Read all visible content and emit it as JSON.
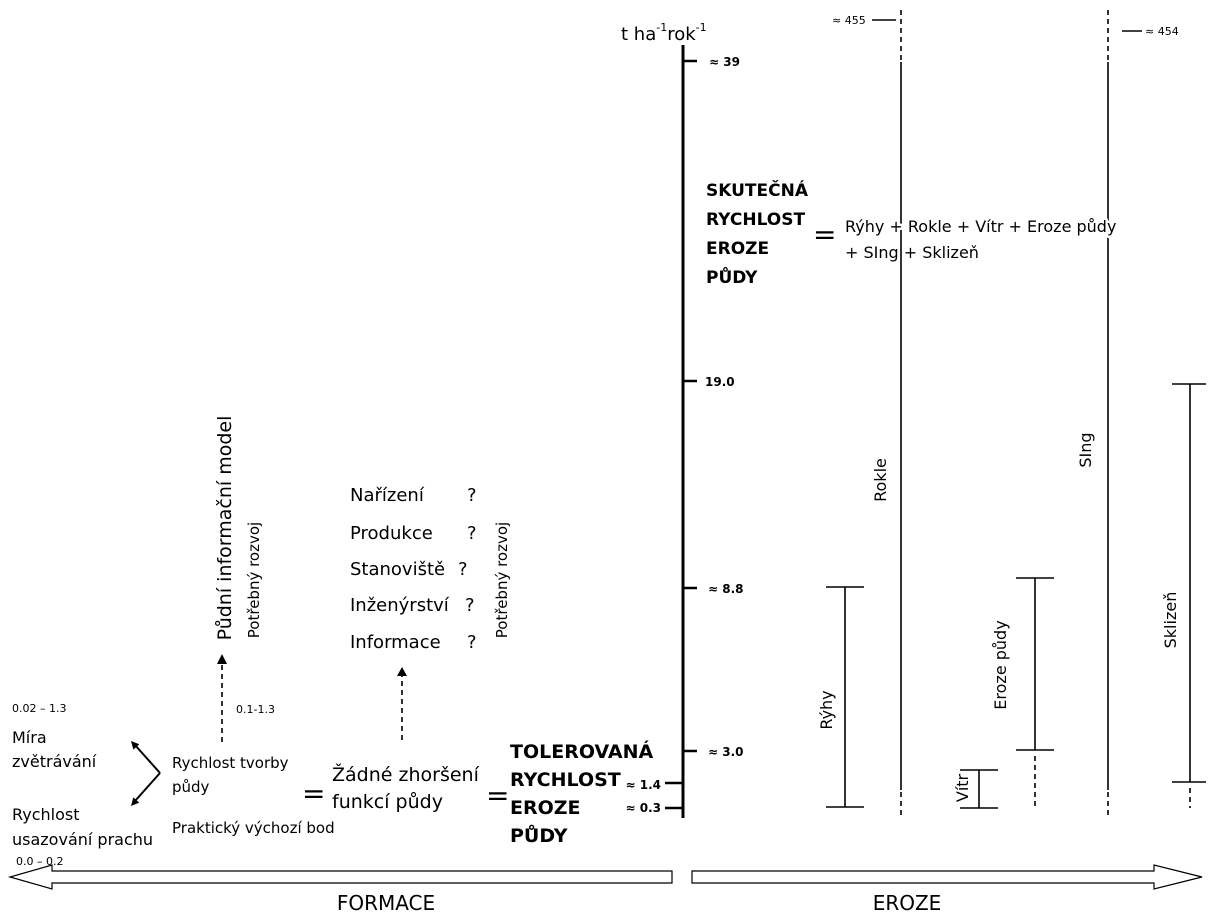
{
  "axis": {
    "unit": {
      "base": "t ha",
      "exp1": "-1",
      "mid": "rok",
      "exp2": "-1"
    },
    "ticks": [
      "≈ 39",
      "19.0",
      "≈ 8.8",
      "≈ 3.0",
      "≈ 1.4",
      "≈ 0.3"
    ]
  },
  "actual_rate": {
    "title": [
      "SKUTEČNÁ",
      "RYCHLOST",
      "EROZE",
      "PŮDY"
    ],
    "equals": "=",
    "formula": [
      "Rýhy + Rokle + Vítr + Eroze půdy",
      "+ SIng + Sklizeň"
    ]
  },
  "components": {
    "rokle": {
      "label": "Rokle",
      "upper": "≈ 455"
    },
    "sing": {
      "label": "SIng",
      "upper": "≈ 454"
    },
    "ryhy": {
      "label": "Rýhy"
    },
    "eroze_pudy": {
      "label": "Eroze půdy"
    },
    "vitr": {
      "label": "Vítr"
    },
    "sklizen": {
      "label": "Sklizeň"
    }
  },
  "tolerable_rate": {
    "title": [
      "TOLEROVANÁ",
      "RYCHLOST",
      "EROZE",
      "PŮDY"
    ]
  },
  "formation": {
    "weathering": {
      "range": "0.02 – 1.3",
      "label": [
        "Míra",
        "zvětrávání"
      ]
    },
    "dust": {
      "range": "0.0 – 0.2",
      "label": [
        "Rychlost",
        "usazování prachu"
      ]
    },
    "soil_formation": {
      "label": [
        "Rychlost tvorby",
        "půdy"
      ],
      "range": "0.1-1.3",
      "note": "Praktický výchozí bod"
    },
    "equals_1": "=",
    "no_degradation": [
      "Žádné zhoršení",
      "funkcí půdy"
    ],
    "equals_2": "=",
    "info_model": {
      "label": "Půdní informační model",
      "note": "Potřebný rozvoj"
    },
    "questions": {
      "items": [
        "Nařízení",
        "Produkce",
        "Stanoviště",
        "Inženýrství",
        "Informace"
      ],
      "mark": "?",
      "note": "Potřebný rozvoj"
    }
  },
  "bottom": {
    "formation_label": "FORMACE",
    "erosion_label": "EROZE"
  }
}
